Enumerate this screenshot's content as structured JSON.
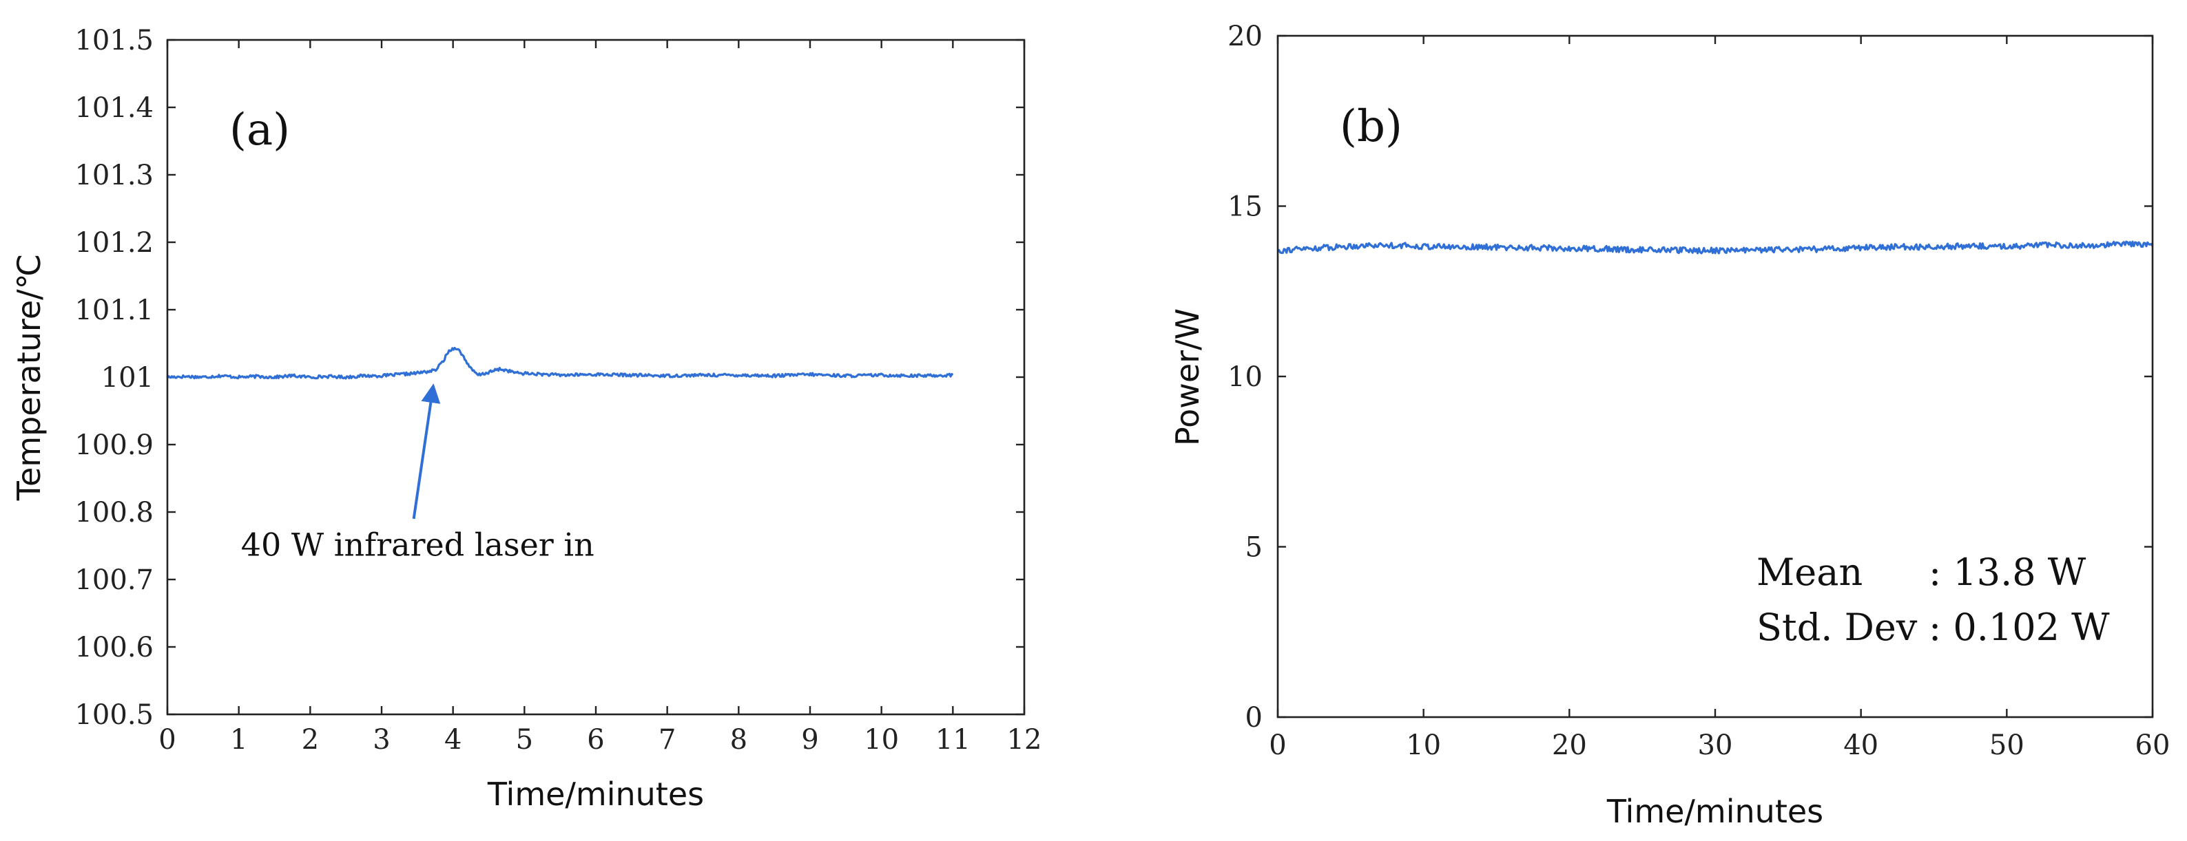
{
  "colors": {
    "series": "#2f6fd6",
    "arrow": "#2f6fd6",
    "axis": "#222222"
  },
  "chart_data": [
    {
      "type": "line",
      "panel_label": "(a)",
      "title": "",
      "xlabel": "Time/minutes",
      "ylabel": "Temperature/℃",
      "xlim": [
        0,
        12
      ],
      "ylim": [
        100.5,
        101.5
      ],
      "xticks": [
        0,
        1,
        2,
        3,
        4,
        5,
        6,
        7,
        8,
        9,
        10,
        11,
        12
      ],
      "xtick_labels": [
        "0",
        "1",
        "2",
        "3",
        "4",
        "5",
        "6",
        "7",
        "8",
        "9",
        "10",
        "11",
        "12"
      ],
      "yticks": [
        100.5,
        100.6,
        100.7,
        100.8,
        100.9,
        101,
        101.1,
        101.2,
        101.3,
        101.4,
        101.5
      ],
      "ytick_labels": [
        "100.5",
        "100.6",
        "100.7",
        "100.8",
        "100.9",
        "101",
        "101.1",
        "101.2",
        "101.3",
        "101.4",
        "101.5"
      ],
      "grid": false,
      "series": [
        {
          "name": "Temperature",
          "x": [
            0,
            0.25,
            0.5,
            0.75,
            1,
            1.25,
            1.5,
            1.75,
            2,
            2.25,
            2.5,
            2.75,
            3,
            3.25,
            3.5,
            3.75,
            3.85,
            3.95,
            4.05,
            4.15,
            4.25,
            4.35,
            4.5,
            4.65,
            4.75,
            4.9,
            5.1,
            5.5,
            6,
            6.5,
            7,
            7.5,
            8,
            8.5,
            9,
            9.5,
            10,
            10.5,
            11
          ],
          "values": [
            101.0,
            101.001,
            101.0,
            101.002,
            101.0,
            101.001,
            101.0,
            101.002,
            101.0,
            101.001,
            101.0,
            101.002,
            101.002,
            101.004,
            101.006,
            101.01,
            101.022,
            101.04,
            101.044,
            101.03,
            101.012,
            101.003,
            101.007,
            101.012,
            101.01,
            101.006,
            101.005,
            101.003,
            101.004,
            101.003,
            101.002,
            101.003,
            101.003,
            101.002,
            101.004,
            101.002,
            101.003,
            101.002,
            101.003
          ]
        }
      ],
      "annotations": [
        {
          "text": "40 W infrared laser in",
          "x": 3.2,
          "y": 100.735,
          "arrow_from": [
            3.45,
            100.79
          ],
          "arrow_to": [
            3.72,
            100.985
          ]
        }
      ]
    },
    {
      "type": "line",
      "panel_label": "(b)",
      "title": "",
      "xlabel": "Time/minutes",
      "ylabel": "Power/W",
      "xlim": [
        0,
        60
      ],
      "ylim": [
        0,
        20
      ],
      "xticks": [
        0,
        10,
        20,
        30,
        40,
        50,
        60
      ],
      "xtick_labels": [
        "0",
        "10",
        "20",
        "30",
        "40",
        "50",
        "60"
      ],
      "yticks": [
        0,
        5,
        10,
        15,
        20
      ],
      "ytick_labels": [
        "0",
        "5",
        "10",
        "15",
        "20"
      ],
      "grid": false,
      "series": [
        {
          "name": "Power",
          "x": [
            0,
            2,
            4,
            6,
            8,
            10,
            12,
            14,
            16,
            18,
            20,
            22,
            24,
            26,
            28,
            30,
            32,
            34,
            36,
            38,
            40,
            42,
            44,
            46,
            48,
            50,
            52,
            54,
            56,
            58,
            60
          ],
          "values": [
            13.7,
            13.75,
            13.8,
            13.85,
            13.85,
            13.82,
            13.8,
            13.8,
            13.78,
            13.78,
            13.75,
            13.75,
            13.72,
            13.72,
            13.7,
            13.7,
            13.7,
            13.72,
            13.72,
            13.75,
            13.78,
            13.8,
            13.8,
            13.82,
            13.82,
            13.82,
            13.85,
            13.85,
            13.85,
            13.88,
            13.88
          ]
        }
      ],
      "stats": {
        "mean_label": "Mean",
        "mean_value": ": 13.8 W",
        "std_label": "Std. Dev",
        "std_value": ": 0.102 W"
      }
    }
  ]
}
